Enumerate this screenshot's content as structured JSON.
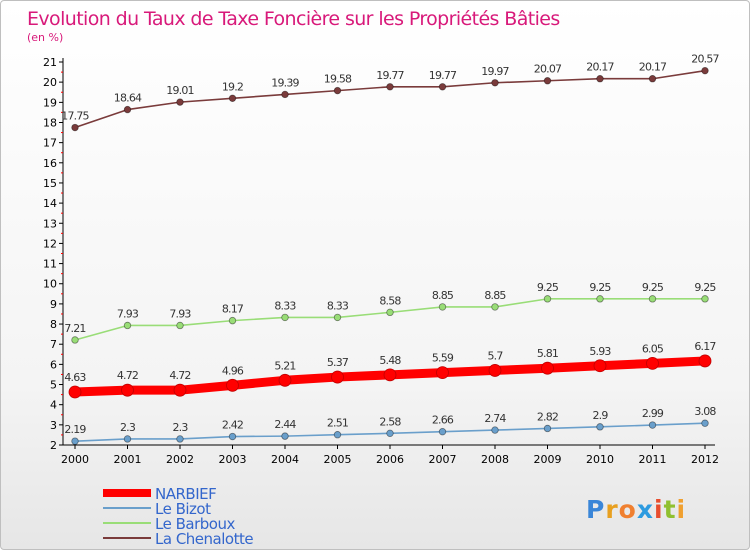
{
  "chart_data": {
    "type": "line",
    "title": "Evolution du Taux de Taxe Foncière sur les Propriétés Bâties",
    "subtitle": "(en %)",
    "xlabel": "",
    "ylabel": "",
    "categories": [
      "2000",
      "2001",
      "2002",
      "2003",
      "2004",
      "2005",
      "2006",
      "2007",
      "2008",
      "2009",
      "2010",
      "2011",
      "2012"
    ],
    "ylim": [
      2,
      21
    ],
    "yticks": [
      2,
      3,
      4,
      5,
      6,
      7,
      8,
      9,
      10,
      11,
      12,
      13,
      14,
      15,
      16,
      17,
      18,
      19,
      20,
      21
    ],
    "grid": false,
    "legend_position": "bottom-left",
    "series": [
      {
        "name": "NARBIEF",
        "color": "#ff0000",
        "values": [
          4.63,
          4.72,
          4.72,
          4.96,
          5.21,
          5.37,
          5.48,
          5.59,
          5.7,
          5.81,
          5.93,
          6.05,
          6.17
        ],
        "labels": [
          "4.63",
          "4.72",
          "4.72",
          "4.96",
          "5.21",
          "5.37",
          "5.48",
          "5.59",
          "5.7",
          "5.81",
          "5.93",
          "6.05",
          "6.17"
        ]
      },
      {
        "name": "Le Bizot",
        "color": "#6a9fcb",
        "values": [
          2.19,
          2.3,
          2.3,
          2.42,
          2.44,
          2.51,
          2.58,
          2.66,
          2.74,
          2.82,
          2.9,
          2.99,
          3.08
        ],
        "labels": [
          "2.19",
          "2.3",
          "2.3",
          "2.42",
          "2.44",
          "2.51",
          "2.58",
          "2.66",
          "2.74",
          "2.82",
          "2.9",
          "2.99",
          "3.08"
        ]
      },
      {
        "name": "Le Barboux",
        "color": "#99dd77",
        "values": [
          7.21,
          7.93,
          7.93,
          8.17,
          8.33,
          8.33,
          8.58,
          8.85,
          8.85,
          9.25,
          9.25,
          9.25,
          9.25
        ],
        "labels": [
          "7.21",
          "7.93",
          "7.93",
          "8.17",
          "8.33",
          "8.33",
          "8.58",
          "8.85",
          "8.85",
          "9.25",
          "9.25",
          "9.25",
          "9.25"
        ]
      },
      {
        "name": "La Chenalotte",
        "color": "#7a3b3b",
        "values": [
          17.75,
          18.64,
          19.01,
          19.2,
          19.39,
          19.58,
          19.77,
          19.77,
          19.97,
          20.07,
          20.17,
          20.17,
          20.57
        ],
        "labels": [
          "17.75",
          "18.64",
          "19.01",
          "19.2",
          "19.39",
          "19.58",
          "19.77",
          "19.77",
          "19.97",
          "20.07",
          "20.17",
          "20.17",
          "20.57"
        ]
      }
    ]
  },
  "logo": {
    "text": "Proxiti"
  },
  "colors": {
    "title": "#d8197a",
    "axis": "#000000",
    "legend_text": "#3366cc",
    "tick_marks": "#ff0000"
  }
}
